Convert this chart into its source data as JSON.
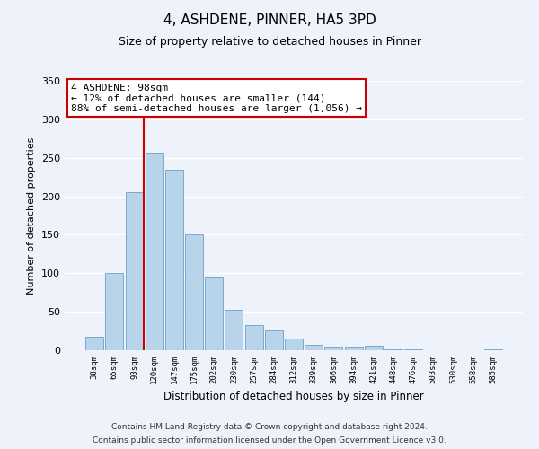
{
  "title": "4, ASHDENE, PINNER, HA5 3PD",
  "subtitle": "Size of property relative to detached houses in Pinner",
  "xlabel": "Distribution of detached houses by size in Pinner",
  "ylabel": "Number of detached properties",
  "bar_labels": [
    "38sqm",
    "65sqm",
    "93sqm",
    "120sqm",
    "147sqm",
    "175sqm",
    "202sqm",
    "230sqm",
    "257sqm",
    "284sqm",
    "312sqm",
    "339sqm",
    "366sqm",
    "394sqm",
    "421sqm",
    "448sqm",
    "476sqm",
    "503sqm",
    "530sqm",
    "558sqm",
    "585sqm"
  ],
  "bar_values": [
    18,
    100,
    205,
    257,
    235,
    150,
    95,
    52,
    33,
    26,
    15,
    7,
    5,
    5,
    6,
    1,
    1,
    0,
    0,
    0,
    1
  ],
  "bar_color": "#b8d4ea",
  "bar_edge_color": "#7aaac8",
  "vline_index": 2,
  "vline_color": "#cc0000",
  "ylim": [
    0,
    350
  ],
  "yticks": [
    0,
    50,
    100,
    150,
    200,
    250,
    300,
    350
  ],
  "annotation_title": "4 ASHDENE: 98sqm",
  "annotation_line1": "← 12% of detached houses are smaller (144)",
  "annotation_line2": "88% of semi-detached houses are larger (1,056) →",
  "annotation_box_color": "#ffffff",
  "annotation_border_color": "#cc0000",
  "footer_line1": "Contains HM Land Registry data © Crown copyright and database right 2024.",
  "footer_line2": "Contains public sector information licensed under the Open Government Licence v3.0.",
  "background_color": "#eef2fa",
  "grid_color": "#d0daf0"
}
